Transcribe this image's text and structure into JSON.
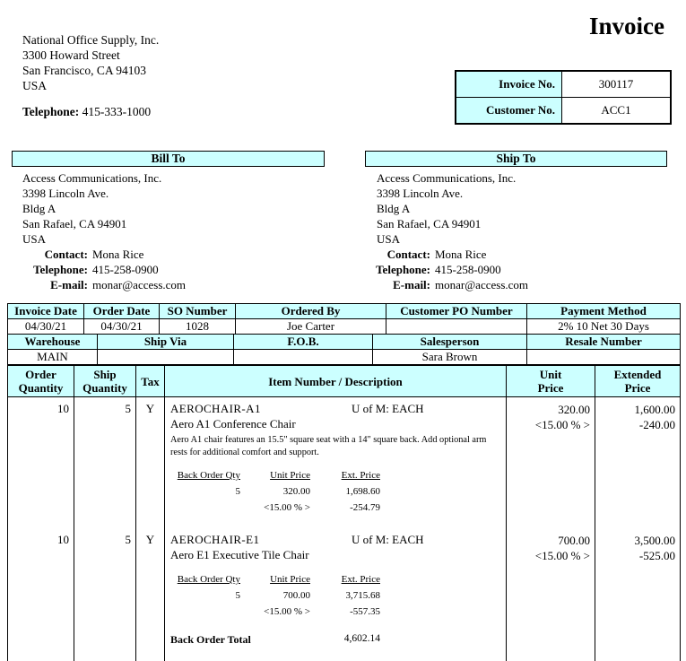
{
  "company": {
    "name": "National Office Supply, Inc.",
    "address": [
      "3300 Howard Street",
      "San Francisco, CA 94103",
      "USA"
    ],
    "phone_label": "Telephone:",
    "phone": "415-333-1000"
  },
  "title": "Invoice",
  "meta": {
    "rows": [
      {
        "label": "Invoice No.",
        "value": "300117"
      },
      {
        "label": "Customer No.",
        "value": "ACC1"
      }
    ]
  },
  "bill_to": {
    "header": "Bill To",
    "lines": [
      "Access Communications, Inc.",
      "3398 Lincoln Ave.",
      "Bldg A",
      "San Rafael, CA 94901",
      "USA"
    ],
    "contacts": [
      {
        "label": "Contact:",
        "value": "Mona Rice"
      },
      {
        "label": "Telephone:",
        "value": "415-258-0900"
      },
      {
        "label": "E-mail:",
        "value": "monar@access.com"
      }
    ]
  },
  "ship_to": {
    "header": "Ship To",
    "lines": [
      "Access Communications, Inc.",
      "3398 Lincoln Ave.",
      "Bldg A",
      "San Rafael, CA 94901",
      "USA"
    ],
    "contacts": [
      {
        "label": "Contact:",
        "value": "Mona Rice"
      },
      {
        "label": "Telephone:",
        "value": "415-258-0900"
      },
      {
        "label": "E-mail:",
        "value": "monar@access.com"
      }
    ]
  },
  "order_info": {
    "row1_headers": [
      "Invoice Date",
      "Order Date",
      "SO Number",
      "Ordered By",
      "Customer PO Number",
      "Payment Method"
    ],
    "row1_values": [
      "04/30/21",
      "04/30/21",
      "1028",
      "Joe Carter",
      "",
      "2% 10 Net 30 Days"
    ],
    "row2_headers": [
      "Warehouse",
      "Ship Via",
      "F.O.B.",
      "Salesperson",
      "Resale Number"
    ],
    "row2_values": [
      "MAIN",
      "",
      "",
      "Sara Brown",
      ""
    ]
  },
  "items": {
    "headers": {
      "order_1": "Order",
      "order_2": "Quantity",
      "ship_1": "Ship",
      "ship_2": "Quantity",
      "tax": "Tax",
      "item": "Item Number / Description",
      "unit_1": "Unit",
      "unit_2": "Price",
      "ext_1": "Extended",
      "ext_2": "Price"
    },
    "backorder_headers": [
      "Back Order Qty",
      "Unit Price",
      "Ext. Price"
    ],
    "rows": [
      {
        "order_qty": "10",
        "ship_qty": "5",
        "tax": "Y",
        "item_number": "AEROCHAIR-A1",
        "uom": "U of M: EACH",
        "name": "Aero A1 Conference Chair",
        "description": "Aero A1 chair features an 15.5\" square seat with a 14\" square back.  Add optional arm rests for additional comfort and support.",
        "unit_price": "320.00",
        "unit_discount": "<15.00 % >",
        "ext_price": "1,600.00",
        "ext_discount": "-240.00",
        "backorder": {
          "qty": "5",
          "unit_price": "320.00",
          "ext_price": "1,698.60",
          "discount": "<15.00 % >",
          "discount_ext": "-254.79"
        }
      },
      {
        "order_qty": "10",
        "ship_qty": "5",
        "tax": "Y",
        "item_number": "AEROCHAIR-E1",
        "uom": "U of M: EACH",
        "name": "Aero E1 Executive Tile Chair",
        "description": "",
        "unit_price": "700.00",
        "unit_discount": "<15.00 % >",
        "ext_price": "3,500.00",
        "ext_discount": "-525.00",
        "backorder": {
          "qty": "5",
          "unit_price": "700.00",
          "ext_price": "3,715.68",
          "discount": "<15.00 % >",
          "discount_ext": "-557.35"
        }
      }
    ],
    "backorder_total_label": "Back Order Total",
    "backorder_total": "4,602.14"
  }
}
